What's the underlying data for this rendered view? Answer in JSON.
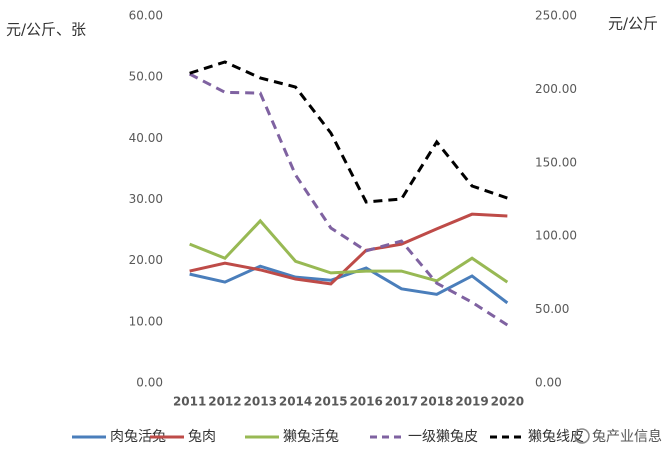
{
  "chart_data": {
    "type": "line",
    "y_label": "元/公斤、张",
    "y2_label": "元/公斤",
    "categories": [
      "2011",
      "2012",
      "2013",
      "2014",
      "2015",
      "2016",
      "2017",
      "2018",
      "2019",
      "2020"
    ],
    "ylim": [
      0,
      60
    ],
    "yticks": [
      {
        "value": 0,
        "label": "0.00"
      },
      {
        "value": 10,
        "label": "10.00"
      },
      {
        "value": 20,
        "label": "20.00"
      },
      {
        "value": 30,
        "label": "30.00"
      },
      {
        "value": 40,
        "label": "40.00"
      },
      {
        "value": 50,
        "label": "50.00"
      },
      {
        "value": 60,
        "label": "60.00"
      }
    ],
    "y2lim": [
      0,
      250
    ],
    "y2ticks": [
      {
        "value": 0,
        "label": "0.00"
      },
      {
        "value": 50,
        "label": "50.00"
      },
      {
        "value": 100,
        "label": "100.00"
      },
      {
        "value": 150,
        "label": "150.00"
      },
      {
        "value": 200,
        "label": "200.00"
      },
      {
        "value": 250,
        "label": "250.00"
      }
    ],
    "series": [
      {
        "name": "肉兔活兔",
        "color": "#4a7ebb",
        "dashed": false,
        "values": [
          17.8,
          16.5,
          19.1,
          17.3,
          16.8,
          18.8,
          15.4,
          14.5,
          17.5,
          13.1
        ]
      },
      {
        "name": "兔肉",
        "color": "#be4b48",
        "dashed": false,
        "values": [
          18.3,
          19.6,
          18.5,
          17.0,
          16.2,
          21.7,
          22.7,
          25.2,
          27.6,
          27.3
        ]
      },
      {
        "name": "獭兔活兔",
        "color": "#98b954",
        "dashed": false,
        "values": [
          22.7,
          20.4,
          26.5,
          19.9,
          18.0,
          18.3,
          18.3,
          16.7,
          20.4,
          16.5
        ]
      },
      {
        "name": "一级獭兔皮",
        "color": "#7f62a1",
        "dashed": true,
        "axis": "y2",
        "values": [
          210.5,
          198,
          197.5,
          141.7,
          105.6,
          90,
          96.7,
          68,
          55,
          39.5
        ]
      },
      {
        "name": "獭兔线皮",
        "color": "#000000",
        "dashed": true,
        "axis": "y2",
        "values": [
          211,
          218.7,
          207.8,
          201.6,
          170.3,
          123.3,
          125.3,
          164.2,
          134.2,
          126
        ]
      }
    ],
    "watermark": "兔产业信息"
  }
}
